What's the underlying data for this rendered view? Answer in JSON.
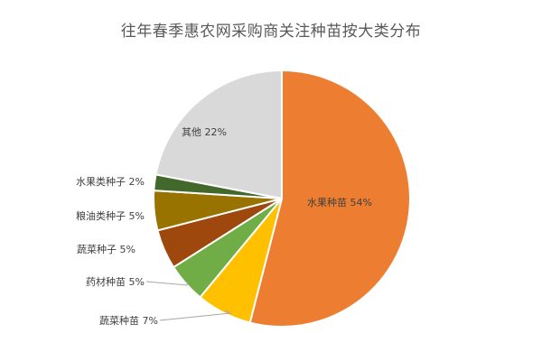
{
  "chart_data": {
    "type": "pie",
    "title": "往年春季惠农网采购商关注种苗按大类分布",
    "categories": [
      "水果种苗",
      "蔬菜种苗",
      "药材种苗",
      "蔬菜种子",
      "粮油类种子",
      "水果类种子",
      "其他"
    ],
    "values": [
      54,
      7,
      5,
      5,
      5,
      2,
      22
    ],
    "unit": "%",
    "data_labels": [
      "水果种苗 54%",
      "蔬菜种苗 7%",
      "药材种苗 5%",
      "蔬菜种子 5%",
      "粮油类种子 5%",
      "水果类种子 2%",
      "其他 22%"
    ],
    "colors": [
      "#ED7D31",
      "#FFC000",
      "#70AD47",
      "#9E480E",
      "#997300",
      "#43682B",
      "#D9D9D9"
    ],
    "start_angle_deg": 0,
    "direction": "clockwise",
    "legend": "none"
  }
}
